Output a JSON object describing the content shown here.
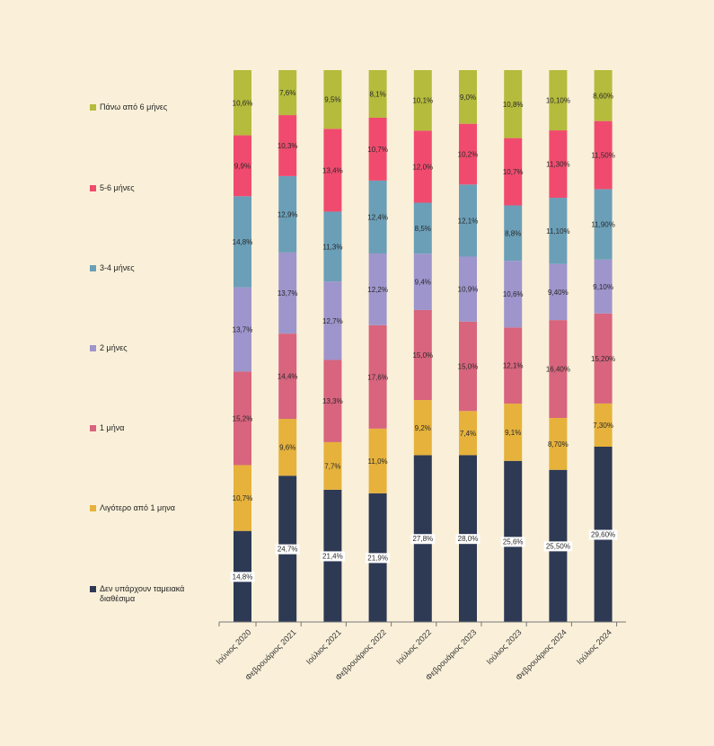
{
  "chart_data": {
    "type": "bar",
    "stacked": true,
    "normalized": true,
    "categories": [
      "Ιούνιος 2020",
      "Φεβρουάριος 2021",
      "Ιούλιος 2021",
      "Φεβρουάριος 2022",
      "Ιούλιος 2022",
      "Φεβρουάριος 2023",
      "Ιούλιος 2023",
      "Φεβρουάριος 2024",
      "Ιούλιος 2024"
    ],
    "ylim": [
      0,
      100
    ],
    "legend_position": "left",
    "grid": false,
    "series": [
      {
        "name": "Δεν υπάρχουν ταμειακά διαθέσιμα",
        "color": "#2e3a54",
        "values": [
          14.8,
          24.7,
          21.4,
          21.9,
          27.8,
          28.0,
          25.6,
          25.5,
          29.6
        ],
        "labels": [
          "14,8%",
          "24,7%",
          "21,4%",
          "21,9%",
          "27,8%",
          "28,0%",
          "25,6%",
          "25,50%",
          "29,60%"
        ]
      },
      {
        "name": "Λιγότερο από 1 μηνα",
        "color": "#e6b23c",
        "values": [
          10.7,
          9.6,
          7.7,
          11.0,
          9.2,
          7.4,
          9.1,
          8.7,
          7.3
        ],
        "labels": [
          "10,7%",
          "9,6%",
          "7,7%",
          "11,0%",
          "9,2%",
          "7,4%",
          "9,1%",
          "8,70%",
          "7,30%"
        ]
      },
      {
        "name": "1 μήνα",
        "color": "#d8647e",
        "values": [
          15.2,
          14.4,
          13.3,
          17.6,
          15.0,
          15.0,
          12.1,
          16.4,
          15.2
        ],
        "labels": [
          "15,2%",
          "14,4%",
          "13,3%",
          "17,6%",
          "15,0%",
          "15,0%",
          "12,1%",
          "16,40%",
          "15,20%"
        ]
      },
      {
        "name": "2 μήνες",
        "color": "#9e95cc",
        "values": [
          13.7,
          13.7,
          12.7,
          12.2,
          9.4,
          10.9,
          10.6,
          9.4,
          9.1
        ],
        "labels": [
          "13,7%",
          "13,7%",
          "12,7%",
          "12,2%",
          "9,4%",
          "10,9%",
          "10,6%",
          "9,40%",
          "9,10%"
        ]
      },
      {
        "name": "3-4 μήνες",
        "color": "#6b9fb8",
        "values": [
          14.8,
          12.9,
          11.3,
          12.4,
          8.5,
          12.1,
          8.8,
          11.1,
          11.9
        ],
        "labels": [
          "14,8%",
          "12,9%",
          "11,3%",
          "12,4%",
          "8,5%",
          "12,1%",
          "8,8%",
          "11,10%",
          "11,90%"
        ]
      },
      {
        "name": "5-6 μήνες",
        "color": "#f04b6e",
        "values": [
          9.9,
          10.3,
          13.4,
          10.7,
          12.0,
          10.2,
          10.7,
          11.3,
          11.5
        ],
        "labels": [
          "9,9%",
          "10,3%",
          "13,4%",
          "10,7%",
          "12,0%",
          "10,2%",
          "10,7%",
          "11,30%",
          "11,50%"
        ]
      },
      {
        "name": "Πάνω από 6 μήνες",
        "color": "#b5bb3c",
        "values": [
          10.6,
          7.6,
          9.5,
          8.1,
          10.1,
          9.0,
          10.8,
          10.1,
          8.6
        ],
        "labels": [
          "10,6%",
          "7,6%",
          "9,5%",
          "8,1%",
          "10,1%",
          "9,0%",
          "10,8%",
          "10,10%",
          "8,60%"
        ]
      }
    ]
  }
}
